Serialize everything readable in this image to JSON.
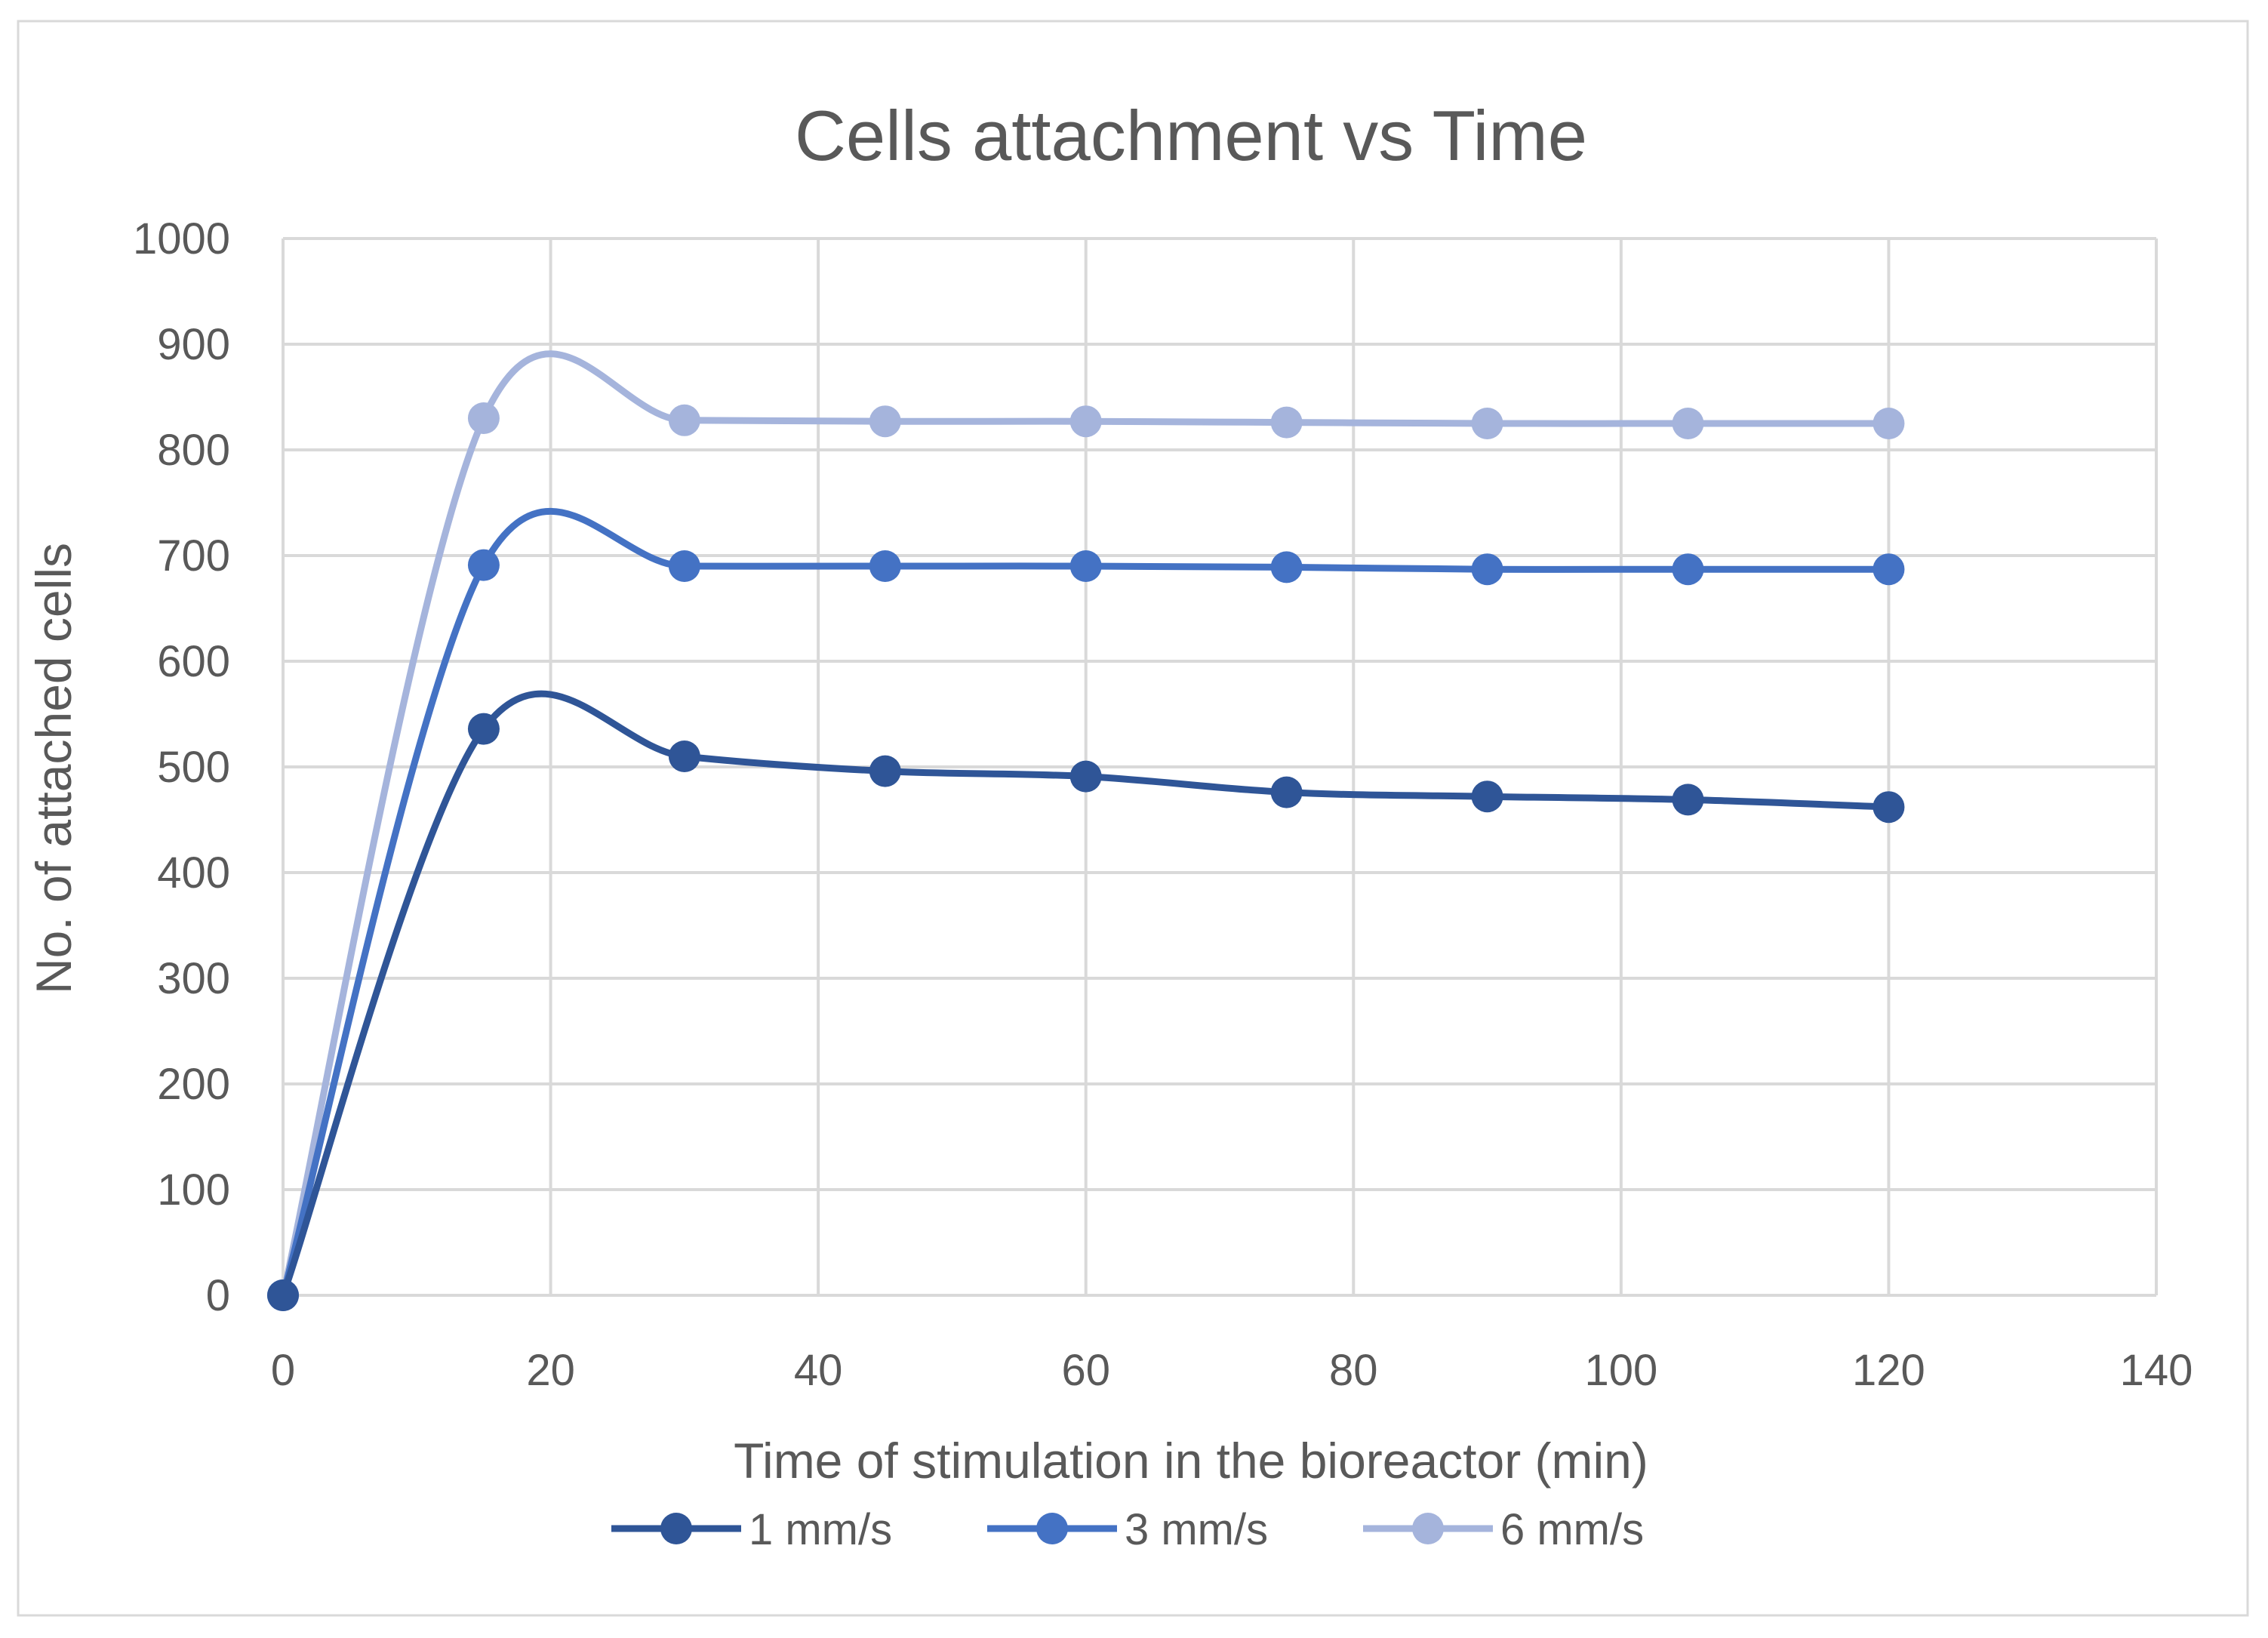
{
  "chart_data": {
    "type": "line",
    "title": "Cells attachment vs Time",
    "xlabel": "Time of stimulation in the bioreactor (min)",
    "ylabel": "No. of attached cells",
    "xlim": [
      0,
      140
    ],
    "ylim": [
      0,
      1000
    ],
    "xticks": [
      0,
      20,
      40,
      60,
      80,
      100,
      120,
      140
    ],
    "yticks": [
      0,
      100,
      200,
      300,
      400,
      500,
      600,
      700,
      800,
      900,
      1000
    ],
    "xtick_labels": [
      "0",
      "20",
      "40",
      "60",
      "80",
      "100",
      "120",
      "140"
    ],
    "ytick_labels": [
      "0",
      "100",
      "200",
      "300",
      "400",
      "500",
      "600",
      "700",
      "800",
      "900",
      "1000"
    ],
    "grid": true,
    "smooth": true,
    "legend_position": "bottom",
    "x": [
      0,
      15,
      30,
      45,
      60,
      75,
      90,
      105,
      120
    ],
    "series": [
      {
        "name": "1 mm/s",
        "color": "#2f5597",
        "values": [
          0,
          536,
          510,
          496,
          491,
          476,
          472,
          469,
          462
        ]
      },
      {
        "name": "3 mm/s",
        "color": "#4472c4",
        "values": [
          0,
          691,
          690,
          690,
          690,
          689,
          687,
          687,
          687
        ]
      },
      {
        "name": "6 mm/s",
        "color": "#a5b4dc",
        "values": [
          0,
          830,
          828,
          827,
          827,
          826,
          825,
          825,
          825
        ]
      }
    ]
  }
}
